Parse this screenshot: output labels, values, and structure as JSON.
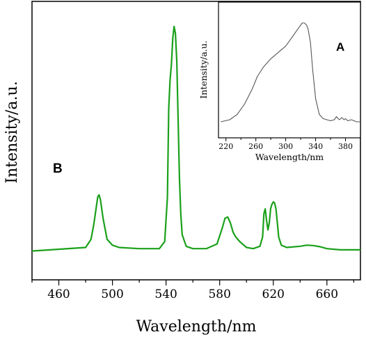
{
  "chart_data": [
    {
      "panel": "B",
      "type": "line",
      "xlabel": "Wavelength/nm",
      "ylabel": "Intensity/a.u.",
      "xlim": [
        440,
        685
      ],
      "ylim": [
        0,
        100
      ],
      "xticks": [
        460,
        500,
        540,
        580,
        620,
        660
      ],
      "series_color": "#1aa01a",
      "series": [
        {
          "x": [
            440,
            480,
            484,
            486,
            488,
            489,
            490,
            491,
            493,
            496,
            500,
            505,
            520,
            535,
            539,
            541,
            542,
            543,
            544,
            545,
            546,
            547,
            548,
            549,
            550,
            551,
            552,
            555,
            560,
            570,
            578,
            582,
            584,
            586,
            588,
            590,
            592,
            595,
            600,
            605,
            610,
            612,
            613,
            614,
            615,
            616,
            617,
            618,
            619,
            620,
            621,
            622,
            623,
            624,
            626,
            630,
            640,
            645,
            650,
            655,
            660,
            670,
            685
          ],
          "y": [
            4,
            5.5,
            9,
            15,
            23,
            27,
            28,
            26,
            18,
            9,
            6.5,
            5.5,
            5,
            5,
            8,
            27,
            65,
            77,
            84,
            95,
            100,
            97,
            85,
            60,
            35,
            20,
            11,
            6,
            5,
            5,
            7,
            14,
            18,
            18.5,
            16,
            12,
            10,
            8,
            5.5,
            5,
            6,
            10,
            20,
            22,
            17,
            13,
            16,
            22,
            24,
            25,
            24.5,
            22,
            16,
            10,
            6.5,
            5.5,
            6,
            6.5,
            6.3,
            5.8,
            5,
            4.5,
            4.5
          ]
        }
      ]
    },
    {
      "panel": "A",
      "type": "line",
      "xlabel": "Wavelength/nm",
      "ylabel": "Intensity/a.u.",
      "xlim": [
        210,
        400
      ],
      "ylim": [
        0,
        100
      ],
      "xticks": [
        220,
        260,
        300,
        340,
        380
      ],
      "series_color": "#555555",
      "series": [
        {
          "x": [
            213,
            225,
            235,
            245,
            255,
            262,
            270,
            280,
            290,
            300,
            305,
            310,
            315,
            320,
            322,
            325,
            328,
            330,
            333,
            336,
            340,
            345,
            350,
            355,
            360,
            365,
            368,
            370,
            372,
            375,
            378,
            380,
            383,
            388,
            395,
            400
          ],
          "y": [
            2,
            4,
            9,
            19,
            33,
            45,
            54,
            62,
            68,
            74,
            79,
            84,
            89,
            94,
            96,
            96,
            94,
            90,
            78,
            52,
            24,
            9,
            5,
            4,
            3,
            4,
            7,
            5,
            4,
            6,
            4,
            5,
            3,
            4,
            2,
            2
          ]
        }
      ]
    }
  ]
}
